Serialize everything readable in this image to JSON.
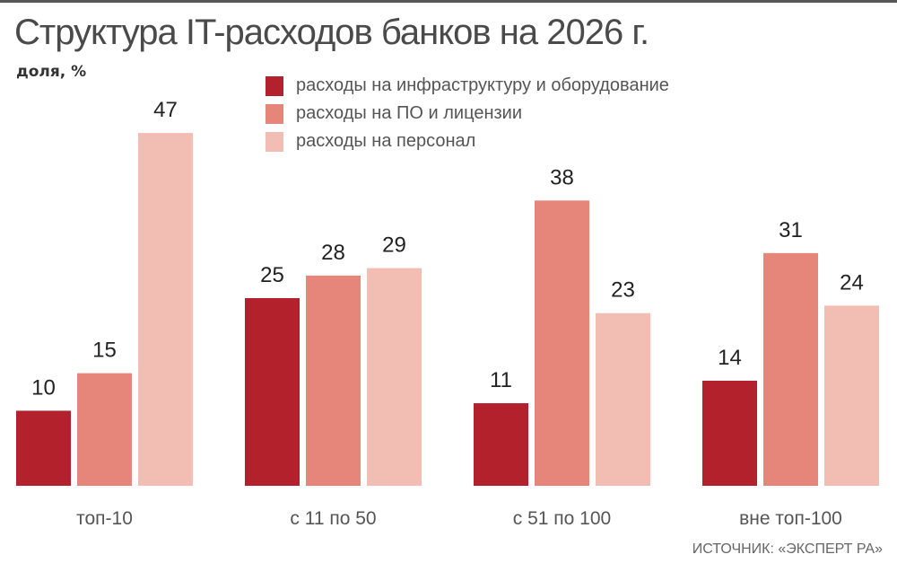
{
  "chart_data": {
    "type": "bar",
    "title": "Структура IT-расходов банков на 2026 г.",
    "ylabel": "доля, %",
    "categories": [
      "топ-10",
      "с 11 по 50",
      "с 51 по 100",
      "вне топ-100"
    ],
    "series": [
      {
        "name": "расходы на инфраструктуру и оборудование",
        "color": "#b3212d",
        "values": [
          10,
          25,
          11,
          14
        ]
      },
      {
        "name": "расходы на ПО и лицензии",
        "color": "#e6857a",
        "values": [
          15,
          28,
          38,
          31
        ]
      },
      {
        "name": "расходы на персонал",
        "color": "#f2bdb3",
        "values": [
          47,
          29,
          23,
          24
        ]
      }
    ],
    "ylim": [
      0,
      47
    ],
    "grid": false,
    "legend": "top",
    "source": "ИСТОЧНИК: «ЭКСПЕРТ РА»"
  }
}
